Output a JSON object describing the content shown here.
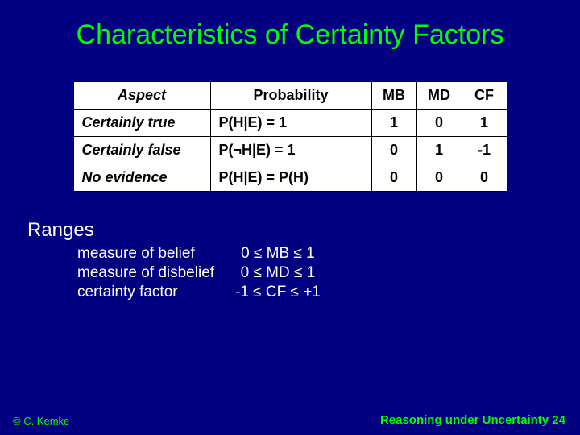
{
  "title": "Characteristics of Certainty Factors",
  "table": {
    "headers": {
      "aspect": "Aspect",
      "prob": "Probability",
      "mb": "MB",
      "md": "MD",
      "cf": "CF"
    },
    "rows": [
      {
        "aspect": "Certainly true",
        "prob": "P(H|E) = 1",
        "mb": "1",
        "md": "0",
        "cf": "1"
      },
      {
        "aspect": "Certainly false",
        "prob": "P(¬H|E) = 1",
        "mb": "0",
        "md": "1",
        "cf": "-1"
      },
      {
        "aspect": "No evidence",
        "prob": "P(H|E) = P(H)",
        "mb": "0",
        "md": "0",
        "cf": "0"
      }
    ]
  },
  "ranges": {
    "heading": "Ranges",
    "labels": {
      "belief": "measure of belief",
      "disbelief": "measure of disbelief",
      "cf": "certainty factor"
    },
    "values": {
      "belief": "0 ≤ MB ≤ 1",
      "disbelief": "0 ≤ MD ≤ 1",
      "cf": "-1 ≤ CF ≤ +1"
    }
  },
  "footer": {
    "copyright": "© C. Kemke",
    "pagelabel": "Reasoning under Uncertainty 24"
  },
  "colors": {
    "background": "#000080",
    "accent": "#00ff00",
    "body_text": "#ffffff",
    "table_bg": "#ffffff",
    "table_border": "#000000"
  }
}
